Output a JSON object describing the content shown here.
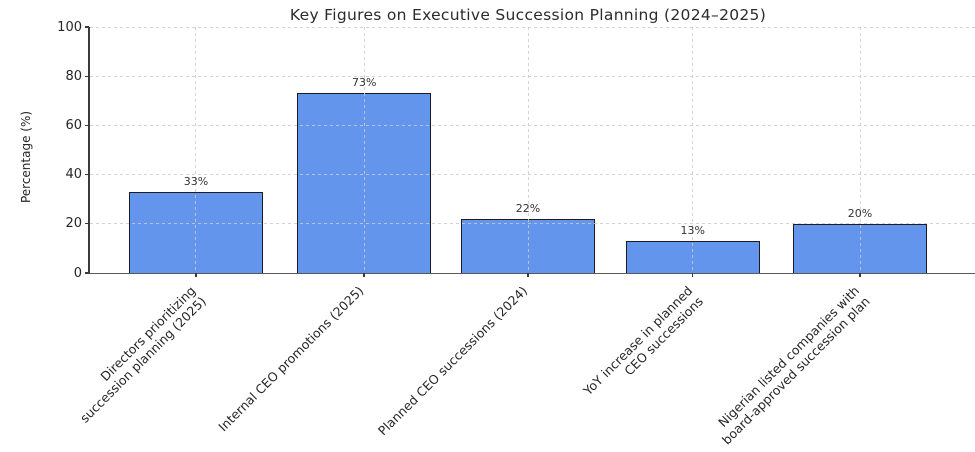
{
  "chart_data": {
    "type": "bar",
    "title": "Key Figures on Executive Succession Planning (2024–2025)",
    "ylabel": "Percentage (%)",
    "xlabel": "",
    "ylim": [
      0,
      100
    ],
    "yticks": [
      0,
      20,
      40,
      60,
      80,
      100
    ],
    "grid": "dashed light-gray horizontal and vertical gridlines",
    "legend": null,
    "categories": [
      "Directors prioritizing\nsuccession planning (2025)",
      "Internal CEO promotions (2025)",
      "Planned CEO successions (2024)",
      "YoY increase in planned\nCEO successions",
      "Nigerian listed companies with\nboard-approved succession plan"
    ],
    "values": [
      33,
      73,
      22,
      13,
      20
    ],
    "value_labels": [
      "33%",
      "73%",
      "22%",
      "13%",
      "20%"
    ],
    "colors": {
      "bar_fill": "#6495ED",
      "bar_edge": "#1c1c1c",
      "grid": "#cbcbcb",
      "text": "#262626"
    }
  }
}
